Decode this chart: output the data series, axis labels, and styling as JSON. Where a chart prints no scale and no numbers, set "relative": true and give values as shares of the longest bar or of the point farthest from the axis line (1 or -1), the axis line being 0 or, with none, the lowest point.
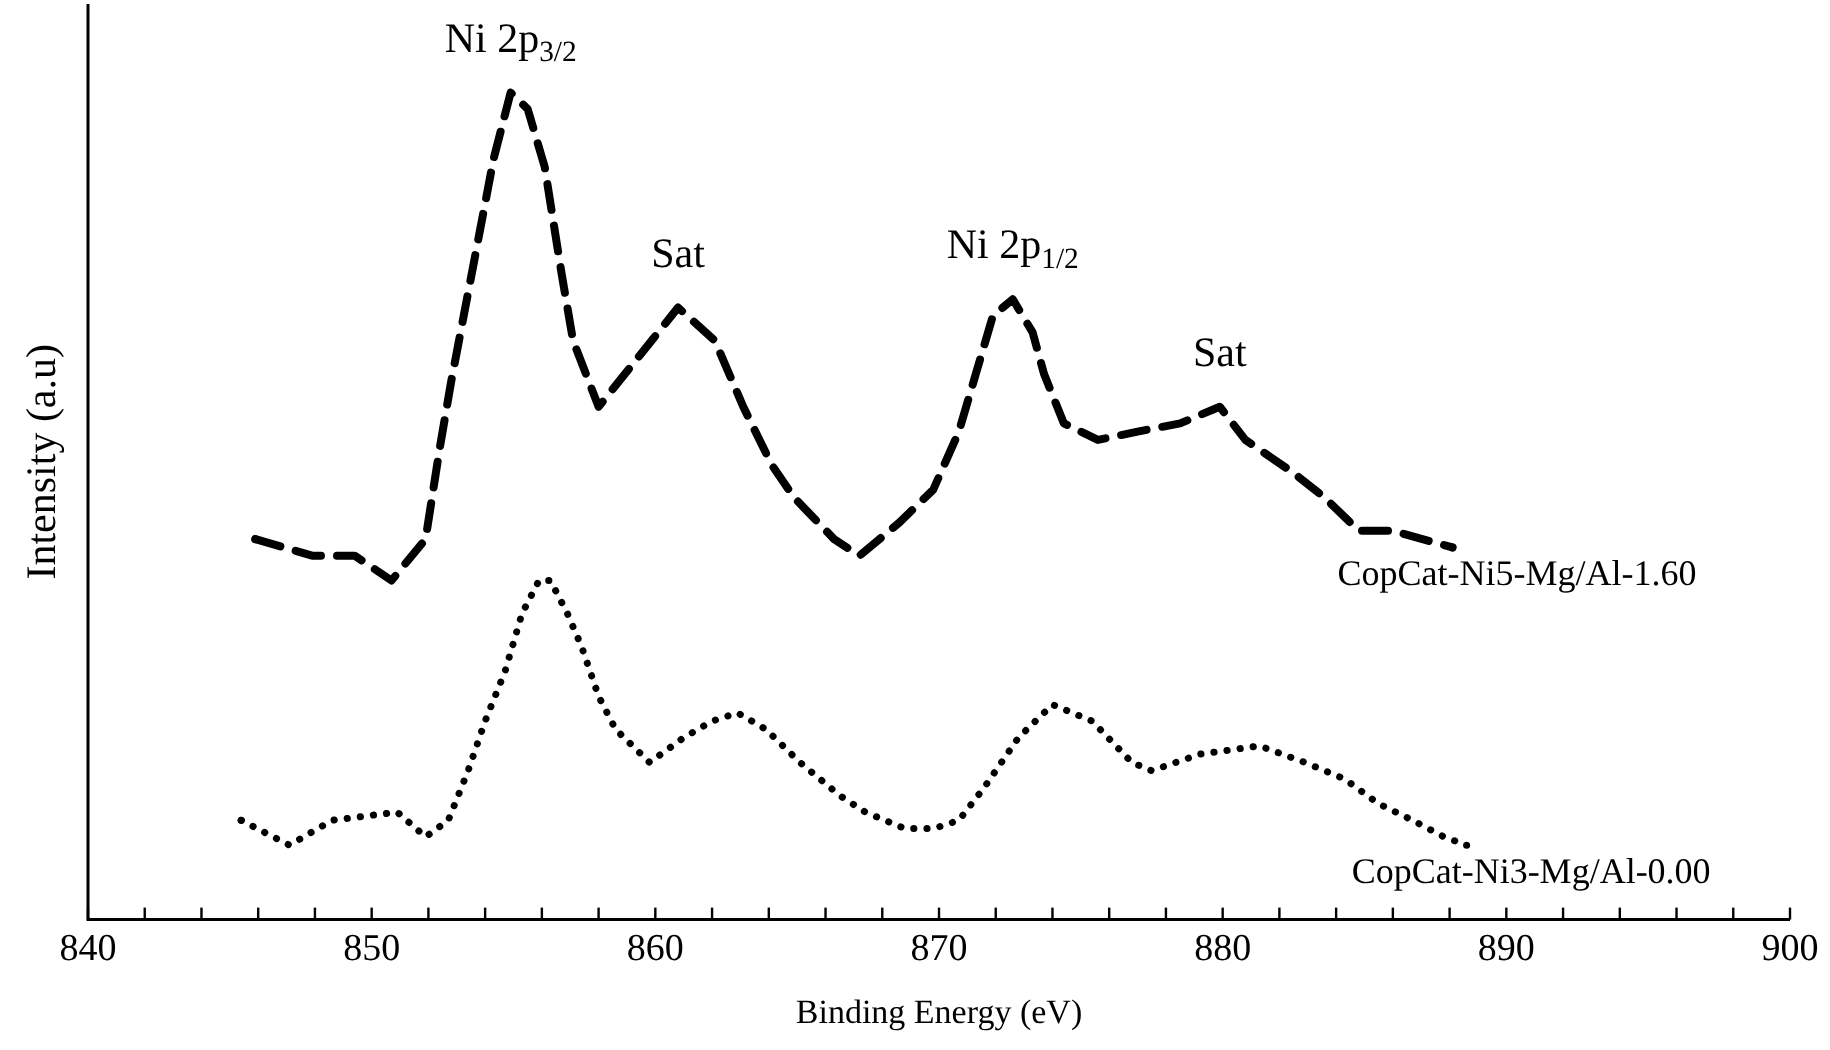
{
  "chart_data": {
    "type": "line",
    "relative": true,
    "xlabel": "Binding Energy (eV)",
    "ylabel": "Intensity (a.u)",
    "xlim": [
      840,
      900
    ],
    "xticks": [
      840,
      {
        "value": 842,
        "label": null
      },
      {
        "value": 844,
        "label": null
      },
      {
        "value": 846,
        "label": null
      },
      {
        "value": 848,
        "label": null
      },
      850,
      {
        "value": 852,
        "label": null
      },
      {
        "value": 854,
        "label": null
      },
      {
        "value": 856,
        "label": null
      },
      {
        "value": 858,
        "label": null
      },
      860,
      {
        "value": 862,
        "label": null
      },
      {
        "value": 864,
        "label": null
      },
      {
        "value": 866,
        "label": null
      },
      {
        "value": 868,
        "label": null
      },
      870,
      {
        "value": 872,
        "label": null
      },
      {
        "value": 874,
        "label": null
      },
      {
        "value": 876,
        "label": null
      },
      {
        "value": 878,
        "label": null
      },
      880,
      {
        "value": 882,
        "label": null
      },
      {
        "value": 884,
        "label": null
      },
      {
        "value": 886,
        "label": null
      },
      {
        "value": 888,
        "label": null
      },
      890,
      {
        "value": 892,
        "label": null
      },
      {
        "value": 894,
        "label": null
      },
      {
        "value": 896,
        "label": null
      },
      {
        "value": 898,
        "label": null
      },
      900
    ],
    "legend": false,
    "grid": false,
    "marker": "none",
    "series": [
      {
        "name": "CopCat-Ni5-Mg/Al-1.60",
        "color": "#000000",
        "line_style": "dashed",
        "x": [
          845.9,
          847.9,
          849.4,
          850.7,
          851.9,
          852.4,
          852.8,
          853.3,
          853.8,
          854.3,
          854.9,
          855.5,
          856.1,
          856.7,
          857.1,
          858.0,
          859.4,
          860.8,
          862.1,
          863.1,
          864.1,
          864.9,
          866.3,
          867.2,
          868.6,
          869.8,
          870.7,
          871.3,
          871.9,
          872.6,
          873.3,
          873.7,
          874.4,
          875.6,
          877.0,
          878.5,
          879.9,
          880.8,
          882.5,
          883.6,
          884.8,
          886.0,
          888.1
        ],
        "values": [
          0.46,
          0.44,
          0.44,
          0.41,
          0.46,
          0.57,
          0.65,
          0.74,
          0.83,
          0.92,
          1,
          0.98,
          0.91,
          0.78,
          0.7,
          0.62,
          0.68,
          0.74,
          0.7,
          0.62,
          0.55,
          0.51,
          0.46,
          0.44,
          0.48,
          0.52,
          0.59,
          0.66,
          0.73,
          0.75,
          0.71,
          0.66,
          0.6,
          0.58,
          0.59,
          0.6,
          0.62,
          0.58,
          0.54,
          0.51,
          0.47,
          0.47,
          0.45
        ]
      },
      {
        "name": "CopCat-Ni3-Mg/Al-0.00",
        "color": "#000000",
        "line_style": "dotted",
        "x": [
          845.4,
          847.1,
          848.6,
          850.9,
          851.9,
          852.7,
          853.4,
          854.0,
          854.7,
          855.3,
          855.9,
          856.3,
          856.9,
          857.4,
          858.0,
          858.6,
          859.8,
          861.0,
          862.0,
          862.9,
          863.9,
          865.1,
          866.5,
          867.4,
          868.8,
          869.8,
          870.7,
          871.6,
          872.8,
          874.0,
          875.4,
          876.8,
          877.5,
          879.2,
          881.3,
          882.9,
          884.3,
          885.5,
          886.7,
          887.8,
          888.6
        ],
        "values": [
          0.12,
          0.09,
          0.12,
          0.13,
          0.1,
          0.12,
          0.18,
          0.24,
          0.3,
          0.37,
          0.41,
          0.41,
          0.37,
          0.33,
          0.27,
          0.23,
          0.19,
          0.22,
          0.24,
          0.25,
          0.23,
          0.19,
          0.15,
          0.13,
          0.11,
          0.11,
          0.12,
          0.16,
          0.22,
          0.26,
          0.24,
          0.19,
          0.18,
          0.2,
          0.21,
          0.19,
          0.17,
          0.14,
          0.12,
          0.1,
          0.09
        ]
      }
    ],
    "annotations": [
      {
        "text": "Ni 2p$_{3/2}$",
        "x": 854.9,
        "y": 1
      },
      {
        "text": "Sat",
        "x": 860.8,
        "y": 0.74
      },
      {
        "text": "Ni 2p$_{1/2}$",
        "x": 872.6,
        "y": 0.75
      },
      {
        "text": "Sat",
        "x": 879.9,
        "y": 0.62
      }
    ]
  }
}
